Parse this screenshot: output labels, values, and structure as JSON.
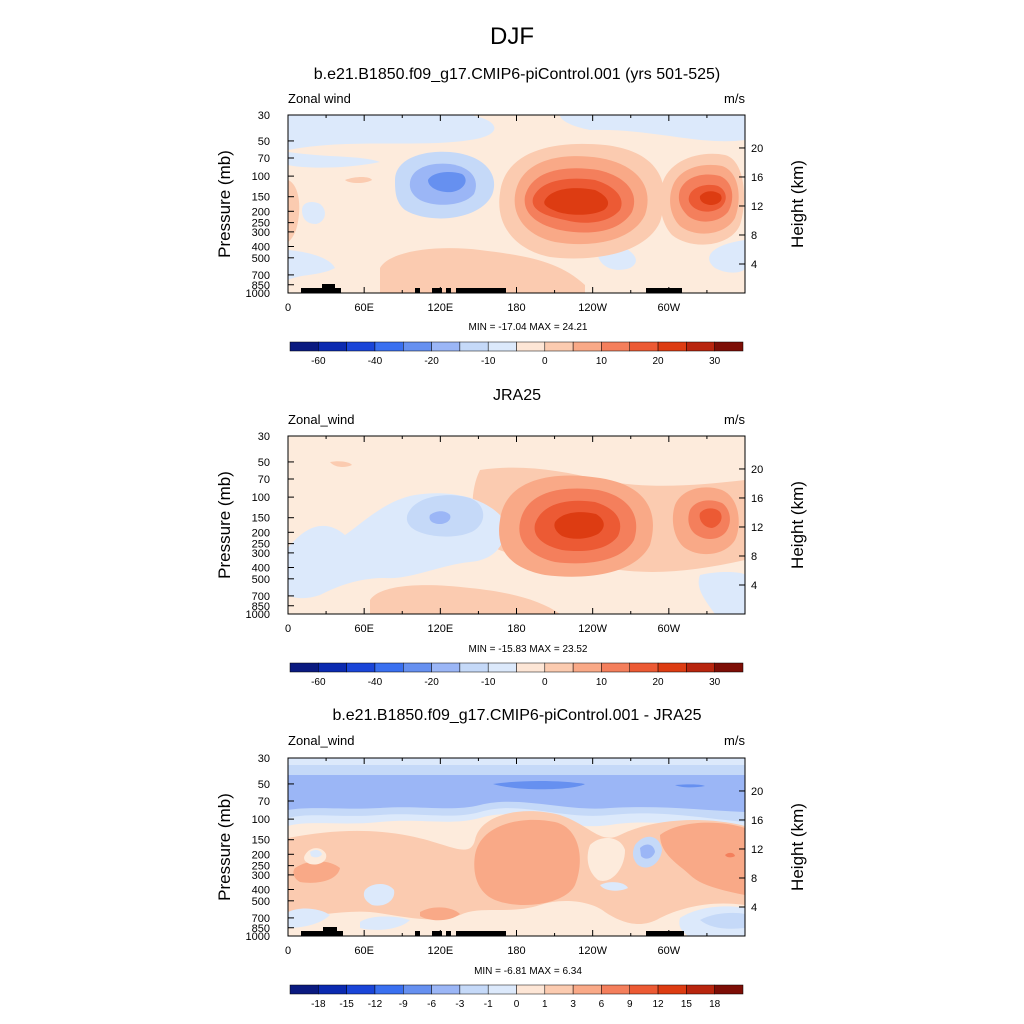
{
  "figure": {
    "title": "DJF"
  },
  "chart_data": [
    {
      "type": "contour",
      "id": "model",
      "title": "b.e21.B1850.f09_g17.CMIP6-piControl.001 (yrs 501-525)",
      "variable_label": "Zonal wind",
      "units": "m/s",
      "ylabel": "Pressure (mb)",
      "ylabel_right": "Height (km)",
      "x_ticks": [
        "0",
        "60E",
        "120E",
        "180",
        "120W",
        "60W"
      ],
      "y_ticks": [
        "30",
        "50",
        "70",
        "100",
        "150",
        "200",
        "250",
        "300",
        "400",
        "500",
        "700",
        "850",
        "1000"
      ],
      "y_ticks_right": [
        "20",
        "16",
        "12",
        "8",
        "4"
      ],
      "stats": "MIN = -17.04  MAX =  24.21",
      "min": -17.04,
      "max": 24.21,
      "colorbar_levels": [
        -70,
        -60,
        -50,
        -40,
        -30,
        -20,
        -15,
        -10,
        -5,
        0,
        5,
        10,
        15,
        20,
        25,
        30,
        35
      ],
      "colorbar_labels": [
        "-60",
        "-40",
        "-20",
        "-10",
        "0",
        "10",
        "20",
        "30"
      ],
      "show_topography": true
    },
    {
      "type": "contour",
      "id": "obs",
      "title": "JRA25",
      "variable_label": "Zonal_wind",
      "units": "m/s",
      "ylabel": "Pressure (mb)",
      "ylabel_right": "Height (km)",
      "x_ticks": [
        "0",
        "60E",
        "120E",
        "180",
        "120W",
        "60W"
      ],
      "y_ticks": [
        "30",
        "50",
        "70",
        "100",
        "150",
        "200",
        "250",
        "300",
        "400",
        "500",
        "700",
        "850",
        "1000"
      ],
      "y_ticks_right": [
        "20",
        "16",
        "12",
        "8",
        "4"
      ],
      "stats": "MIN = -15.83  MAX =  23.52",
      "min": -15.83,
      "max": 23.52,
      "colorbar_levels": [
        -70,
        -60,
        -50,
        -40,
        -30,
        -20,
        -15,
        -10,
        -5,
        0,
        5,
        10,
        15,
        20,
        25,
        30,
        35
      ],
      "colorbar_labels": [
        "-60",
        "-40",
        "-20",
        "-10",
        "0",
        "10",
        "20",
        "30"
      ],
      "show_topography": false
    },
    {
      "type": "contour",
      "id": "diff",
      "title": "b.e21.B1850.f09_g17.CMIP6-piControl.001 - JRA25",
      "variable_label": "Zonal_wind",
      "units": "m/s",
      "ylabel": "Pressure (mb)",
      "ylabel_right": "Height (km)",
      "x_ticks": [
        "0",
        "60E",
        "120E",
        "180",
        "120W",
        "60W"
      ],
      "y_ticks": [
        "30",
        "50",
        "70",
        "100",
        "150",
        "200",
        "250",
        "300",
        "400",
        "500",
        "700",
        "850",
        "1000"
      ],
      "y_ticks_right": [
        "20",
        "16",
        "12",
        "8",
        "4"
      ],
      "stats": "MIN =  -6.81  MAX =   6.34",
      "min": -6.81,
      "max": 6.34,
      "colorbar_levels": [
        -21,
        -18,
        -15,
        -12,
        -9,
        -6,
        -3,
        -1,
        0,
        1,
        3,
        6,
        9,
        12,
        15,
        18,
        21
      ],
      "colorbar_labels": [
        "-18",
        "-15",
        "-12",
        "-9",
        "-6",
        "-3",
        "-1",
        "0",
        "1",
        "3",
        "6",
        "9",
        "12",
        "15",
        "18"
      ],
      "show_topography": true
    }
  ],
  "colors": {
    "colorbar": [
      "#0a1a80",
      "#0b2ab0",
      "#1a45d8",
      "#3a70f0",
      "#6690f0",
      "#9bb6f6",
      "#c5d9f8",
      "#dce9fb",
      "#fde6d6",
      "#fbcbb0",
      "#f9a987",
      "#f47f5c",
      "#ec5a34",
      "#dd3c12",
      "#b8250e",
      "#7d0e06"
    ],
    "field_bg": "#fdebdc",
    "topography": "#000000"
  }
}
